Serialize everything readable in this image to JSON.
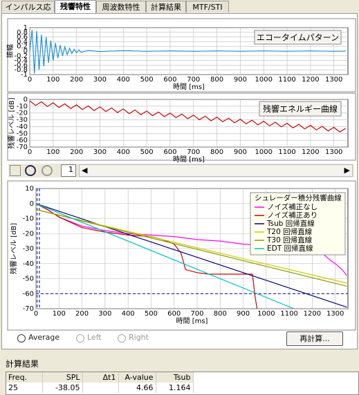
{
  "tabs": [
    "インパルス応答",
    "残響特性",
    "周波数特性",
    "計算結果",
    "MTF/STI"
  ],
  "chart_data": [
    {
      "type": "line",
      "title": "エコータイムパターン",
      "ylabel": "振幅",
      "xlabel": "時間 [ms]",
      "grid": true,
      "xlim": [
        0,
        1360
      ],
      "ylim": [
        -1,
        1
      ],
      "xticks": [
        0,
        100,
        200,
        300,
        400,
        500,
        600,
        700,
        800,
        900,
        1000,
        1100,
        1200,
        1300
      ],
      "yticks": [
        1,
        0.8,
        0.6,
        0.4,
        0.2,
        0,
        -0.2,
        -0.4,
        -0.6,
        -0.8,
        -1
      ],
      "x": [
        0,
        10,
        20,
        30,
        40,
        50,
        60,
        70,
        80,
        90,
        100,
        110,
        120,
        130,
        140,
        150,
        160,
        170,
        180,
        190,
        200,
        210,
        220,
        250,
        300,
        400,
        500,
        600,
        700,
        800,
        900,
        1000,
        1100,
        1200,
        1300,
        1350
      ],
      "series": [
        {
          "color": "#1e90d8",
          "values": [
            0,
            0.9,
            -0.95,
            0.85,
            -0.8,
            0.7,
            -0.65,
            0.6,
            -0.5,
            0.45,
            -0.4,
            0.35,
            -0.3,
            0.25,
            -0.2,
            0.18,
            -0.15,
            0.12,
            -0.1,
            0.08,
            -0.07,
            0.05,
            -0.05,
            0.03,
            -0.02,
            0.02,
            -0.01,
            0.01,
            -0.01,
            0.01,
            -0.01,
            0.01,
            -0.01,
            0.01,
            -0.01,
            0
          ]
        }
      ]
    },
    {
      "type": "line",
      "title": "残響エネルギー曲線",
      "ylabel": "残響レベル [dB]",
      "xlabel": "時間 [ms]",
      "grid": true,
      "xlim": [
        0,
        1360
      ],
      "ylim": [
        -70,
        0
      ],
      "xticks": [
        0,
        100,
        200,
        300,
        400,
        500,
        600,
        700,
        800,
        900,
        1000,
        1100,
        1200,
        1300
      ],
      "yticks": [
        0,
        -10,
        -20,
        -30,
        -40,
        -50,
        -60,
        -70
      ],
      "x": [
        0,
        25,
        50,
        75,
        100,
        125,
        150,
        175,
        200,
        225,
        250,
        275,
        300,
        325,
        350,
        375,
        400,
        425,
        450,
        475,
        500,
        525,
        550,
        575,
        600,
        625,
        650,
        675,
        700,
        725,
        750,
        775,
        800,
        825,
        850,
        875,
        900,
        925,
        950,
        975,
        1000,
        1025,
        1050,
        1075,
        1100,
        1125,
        1150,
        1175,
        1200,
        1225,
        1250,
        1275,
        1300,
        1325,
        1350
      ],
      "series": [
        {
          "color": "#cc0000",
          "values": [
            -2,
            -8.8,
            -3.5,
            -10.3,
            -5,
            -11.8,
            -6.5,
            -13.3,
            -8,
            -14.8,
            -9.5,
            -16.3,
            -11,
            -17.8,
            -12.5,
            -19.3,
            -14,
            -20.8,
            -15.5,
            -22.3,
            -17,
            -23.8,
            -18.5,
            -25.3,
            -20,
            -26.8,
            -21.5,
            -28.3,
            -23,
            -29.8,
            -24.5,
            -31.3,
            -26,
            -32.8,
            -27.5,
            -34.3,
            -29,
            -35.8,
            -30.5,
            -37.3,
            -32,
            -38.8,
            -33.5,
            -40.3,
            -35,
            -41.8,
            -36.5,
            -43.3,
            -38,
            -44.8,
            -39.5,
            -46.3,
            -41,
            -47.8,
            -42.5
          ]
        }
      ]
    },
    {
      "type": "line",
      "ylabel": "残響レベル [dB]",
      "xlabel": "時間 [ms]",
      "grid": true,
      "legend_title": "シュレーダー積分残響曲線",
      "xlim": [
        0,
        1355
      ],
      "ylim": [
        -70,
        10
      ],
      "xticks": [
        0,
        100,
        200,
        300,
        400,
        500,
        600,
        700,
        800,
        900,
        1000,
        1100,
        1200,
        1300
      ],
      "yticks": [
        10,
        0,
        -10,
        -20,
        -30,
        -40,
        -50,
        -60,
        -70
      ],
      "hlines": [
        -60
      ],
      "vlines": [
        5,
        15
      ],
      "series": [
        {
          "name": "ノイズ補正なし",
          "color": "#ff00ff",
          "x": [
            0,
            50,
            100,
            200,
            300,
            400,
            500,
            600,
            700,
            800,
            900,
            1000,
            1100,
            1200,
            1250,
            1280,
            1300,
            1330,
            1350
          ],
          "values": [
            0,
            -4,
            -9,
            -15,
            -18,
            -20,
            -21,
            -22,
            -24,
            -25,
            -27,
            -28,
            -30,
            -32,
            -34,
            -38,
            -40,
            -44,
            -48
          ]
        },
        {
          "name": "ノイズ補正あり",
          "color": "#cc0000",
          "x": [
            0,
            50,
            100,
            200,
            300,
            400,
            500,
            550,
            600,
            630,
            650,
            700,
            750,
            800,
            900,
            940,
            945,
            950,
            960
          ],
          "values": [
            0,
            -4,
            -9,
            -16,
            -19,
            -21,
            -22,
            -24,
            -27,
            -33,
            -44,
            -46,
            -47,
            -47,
            -47,
            -47,
            -53,
            -60,
            -70
          ]
        },
        {
          "name": "Tsub 回帰直線",
          "color": "#000080",
          "x": [
            0,
            1350
          ],
          "values": [
            0,
            -69
          ]
        },
        {
          "name": "T20 回帰直線",
          "color": "#cccc00",
          "x": [
            0,
            1350
          ],
          "values": [
            -4,
            -53
          ]
        },
        {
          "name": "T30 回帰直線",
          "color": "#8a9a00",
          "x": [
            0,
            1350
          ],
          "values": [
            -4,
            -55
          ]
        },
        {
          "name": "EDT 回帰直線",
          "color": "#00c0c0",
          "x": [
            0,
            1120
          ],
          "values": [
            0,
            -70
          ]
        }
      ]
    }
  ],
  "toolbar": {
    "page": "1"
  },
  "controls": {
    "radios": [
      "Average",
      "Left",
      "Right"
    ],
    "button": "再計算..."
  },
  "results": {
    "title": "計算結果",
    "headers": [
      "Freq.",
      "SPL",
      "Δt1",
      "A-value",
      "Tsub"
    ],
    "rows": [
      [
        25,
        -38.05,
        null,
        4.66,
        1.164
      ]
    ]
  }
}
